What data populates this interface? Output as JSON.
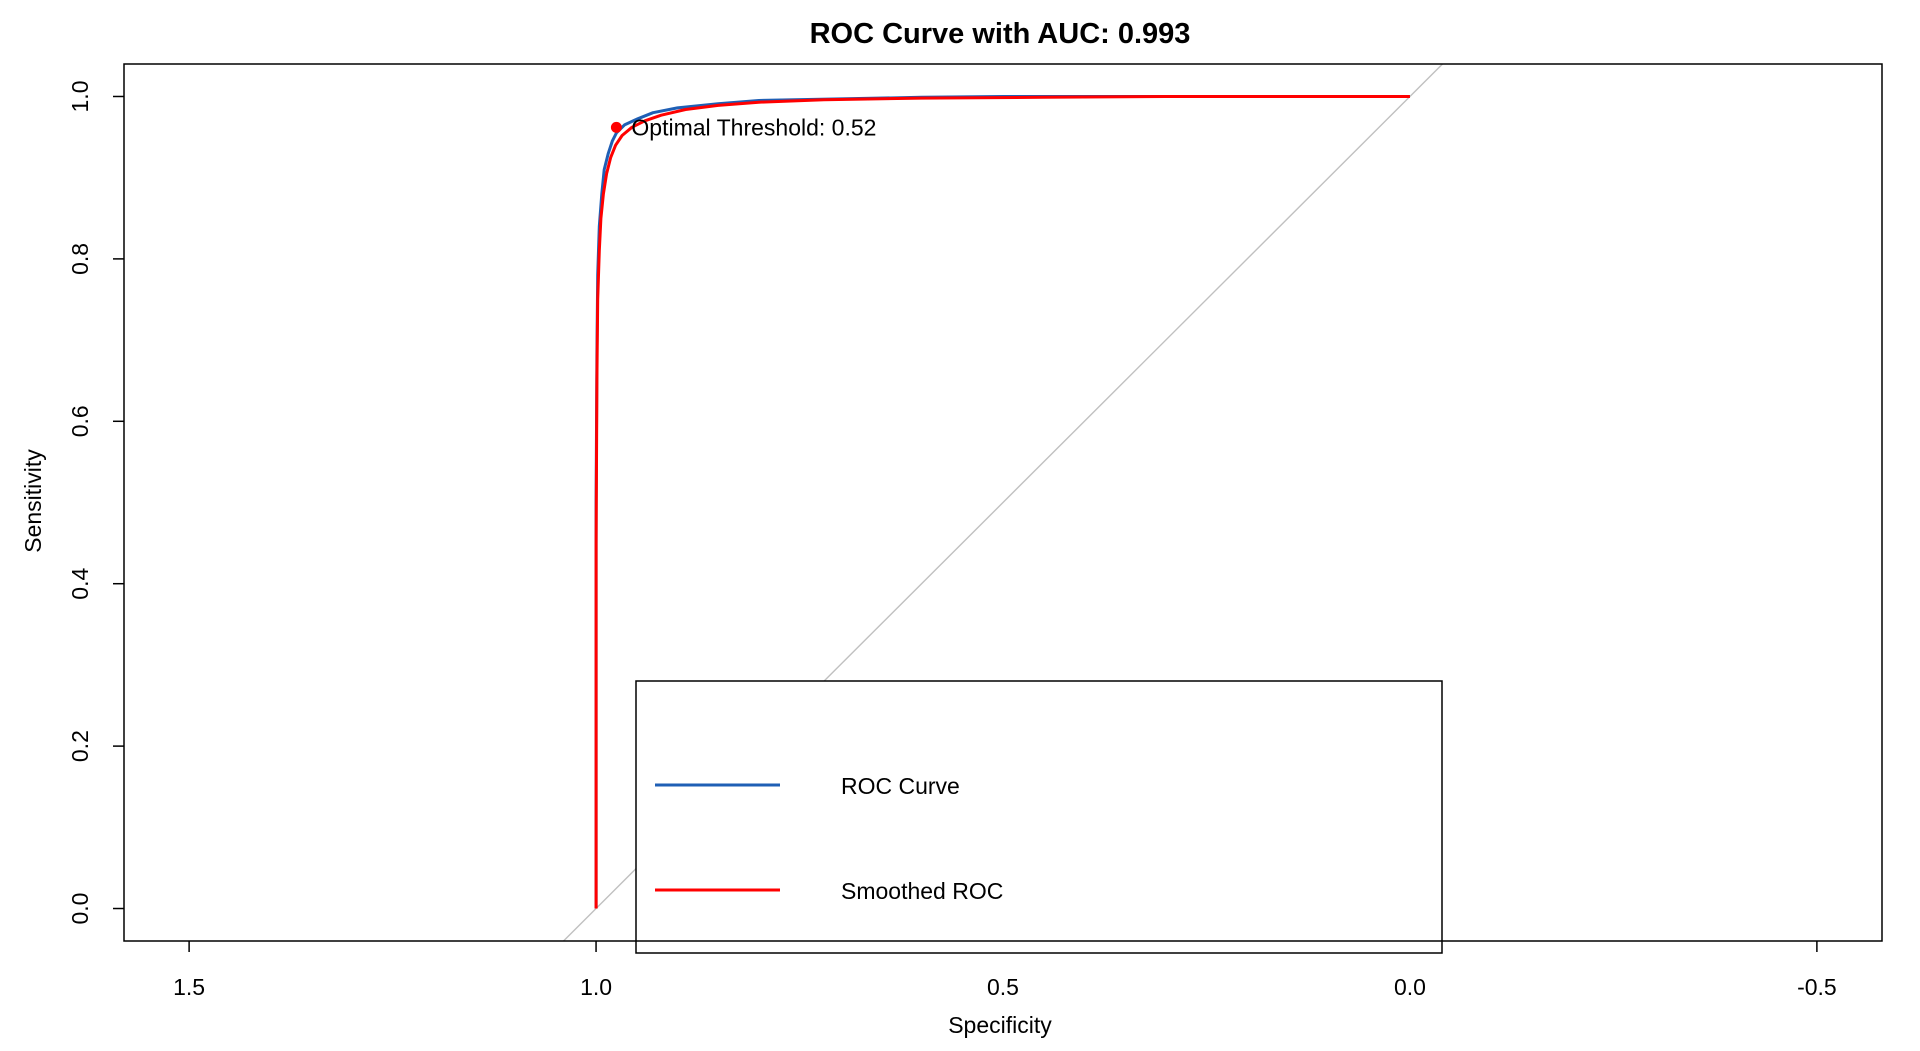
{
  "chart_data": {
    "type": "line",
    "title": "ROC Curve with AUC: 0.993",
    "xlabel": "Specificity",
    "ylabel": "Sensitivity",
    "xlim": [
      1.58,
      -0.58
    ],
    "ylim": [
      -0.04,
      1.04
    ],
    "x_ticks": [
      1.5,
      1.0,
      0.5,
      0.0,
      -0.5
    ],
    "x_tick_labels": [
      "1.5",
      "1.0",
      "0.5",
      "0.0",
      "-0.5"
    ],
    "y_ticks": [
      0.0,
      0.2,
      0.4,
      0.6,
      0.8,
      1.0
    ],
    "y_tick_labels": [
      "0.0",
      "0.2",
      "0.4",
      "0.6",
      "0.8",
      "1.0"
    ],
    "grid": false,
    "reference_line": {
      "from": [
        1,
        0
      ],
      "to": [
        0,
        1
      ],
      "color": "#c0c0c0"
    },
    "series": [
      {
        "name": "ROC Curve",
        "color": "#1f5fb5",
        "x": [
          1.0,
          1.0,
          0.999,
          0.998,
          0.996,
          0.993,
          0.99,
          0.985,
          0.98,
          0.975,
          0.965,
          0.95,
          0.93,
          0.9,
          0.85,
          0.8,
          0.7,
          0.6,
          0.5,
          0.3,
          0.0
        ],
        "y": [
          0.0,
          0.5,
          0.68,
          0.78,
          0.84,
          0.88,
          0.91,
          0.93,
          0.945,
          0.955,
          0.965,
          0.972,
          0.98,
          0.986,
          0.991,
          0.995,
          0.997,
          0.999,
          1.0,
          1.0,
          1.0
        ]
      },
      {
        "name": "Smoothed ROC",
        "color": "#ff0000",
        "x": [
          1.0,
          1.0,
          0.999,
          0.998,
          0.996,
          0.994,
          0.991,
          0.987,
          0.982,
          0.976,
          0.968,
          0.956,
          0.94,
          0.92,
          0.89,
          0.85,
          0.8,
          0.72,
          0.6,
          0.45,
          0.3,
          0.0
        ],
        "y": [
          0.0,
          0.45,
          0.65,
          0.75,
          0.81,
          0.85,
          0.88,
          0.905,
          0.925,
          0.94,
          0.952,
          0.962,
          0.97,
          0.977,
          0.984,
          0.989,
          0.993,
          0.996,
          0.998,
          0.999,
          1.0,
          1.0
        ]
      }
    ],
    "optimal_point": {
      "x": 0.975,
      "y": 0.962,
      "label": "Optimal Threshold: 0.52",
      "color": "#ff0000"
    },
    "legend": {
      "placement": "bottom-center",
      "entries": [
        {
          "label": "ROC Curve",
          "color": "#1f5fb5"
        },
        {
          "label": "Smoothed ROC",
          "color": "#ff0000"
        }
      ]
    }
  }
}
